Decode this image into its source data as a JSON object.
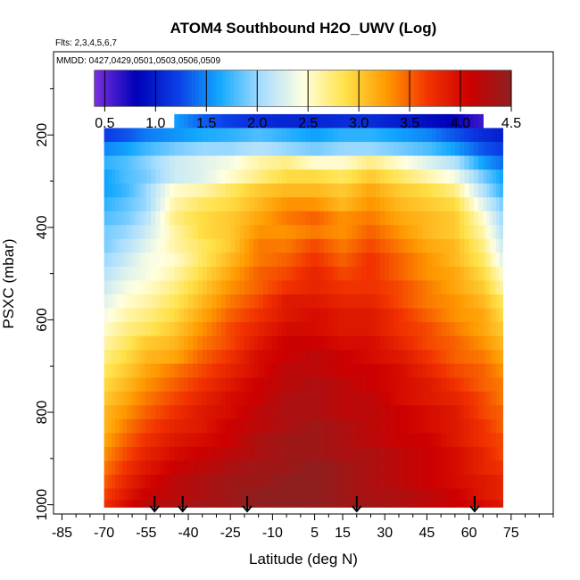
{
  "chart_data": {
    "type": "heatmap",
    "title": "ATOM4 Southbound H2O_UWV (Log)",
    "subtitle_flights": "Flts: 2,3,4,5,6,7",
    "subtitle_dates": "MMDD: 0427,0429,0501,0503,0506,0509",
    "xlabel": "Latitude (deg N)",
    "ylabel": "PSXC (mbar)",
    "xlim": [
      -88,
      90
    ],
    "ylim": [
      1020,
      20
    ],
    "x_ticks": [
      -85,
      -70,
      -55,
      -40,
      -25,
      -10,
      5,
      15,
      30,
      45,
      60,
      75
    ],
    "y_ticks": [
      200,
      400,
      600,
      800,
      1000
    ],
    "colorbar": {
      "min": 0.4,
      "max": 4.5,
      "ticks": [
        0.5,
        1.0,
        1.5,
        2.0,
        2.5,
        3.0,
        3.5,
        4.0,
        4.5
      ],
      "tick_labels": [
        "0.5",
        "1.0",
        "1.5",
        "2.0",
        "2.5",
        "3.0",
        "3.5",
        "4.0",
        "4.5"
      ],
      "colors": [
        "#7b2fe0",
        "#0000b8",
        "#0b3fe6",
        "#12a8ff",
        "#a8ddff",
        "#ffffe0",
        "#ffe24a",
        "#ff9a00",
        "#f23300",
        "#cc0000",
        "#8f1f1f"
      ]
    },
    "pressure_levels": [
      170,
      200,
      230,
      260,
      290,
      320,
      350,
      380,
      410,
      440,
      470,
      500,
      530,
      560,
      590,
      620,
      650,
      680,
      710,
      740,
      770,
      800,
      830,
      860,
      890,
      920,
      950,
      980,
      1000
    ],
    "lat_nodes": [
      -85,
      -70,
      -62,
      -55,
      -45,
      -35,
      -25,
      -15,
      -5,
      5,
      15,
      25,
      35,
      45,
      55,
      65,
      72
    ],
    "values_by_pressure": [
      [
        null,
        null,
        null,
        null,
        1.6,
        1.35,
        1.2,
        1.1,
        1.05,
        1.05,
        1.1,
        1.1,
        1.0,
        0.9,
        0.8,
        0.6,
        null
      ],
      [
        null,
        1.2,
        1.3,
        1.45,
        1.55,
        1.65,
        1.7,
        1.8,
        1.7,
        1.6,
        1.7,
        1.7,
        1.6,
        1.5,
        1.3,
        1.1,
        1.0
      ],
      [
        null,
        1.5,
        1.6,
        1.75,
        1.9,
        2.0,
        2.0,
        2.1,
        2.0,
        1.9,
        2.0,
        2.0,
        1.9,
        1.8,
        1.6,
        1.3,
        1.2
      ],
      [
        null,
        1.7,
        1.8,
        1.95,
        2.2,
        2.3,
        2.4,
        2.6,
        2.7,
        2.5,
        2.5,
        2.7,
        2.5,
        2.3,
        2.1,
        1.6,
        1.4
      ],
      [
        null,
        1.6,
        1.8,
        1.9,
        2.2,
        2.3,
        2.5,
        2.7,
        2.9,
        2.9,
        2.8,
        3.0,
        2.8,
        2.6,
        2.4,
        1.9,
        1.6
      ],
      [
        null,
        1.6,
        1.75,
        2.0,
        2.5,
        2.6,
        2.8,
        3.0,
        3.1,
        3.1,
        3.0,
        3.2,
        3.0,
        2.9,
        2.7,
        2.1,
        1.7
      ],
      [
        null,
        1.7,
        1.85,
        2.0,
        2.6,
        2.8,
        2.9,
        3.1,
        3.3,
        3.3,
        3.1,
        3.3,
        3.1,
        3.0,
        2.9,
        2.3,
        1.9
      ],
      [
        null,
        1.8,
        1.9,
        2.1,
        2.7,
        2.9,
        3.0,
        3.2,
        3.4,
        3.5,
        3.3,
        3.4,
        3.2,
        3.1,
        3.0,
        2.5,
        2.0
      ],
      [
        null,
        1.9,
        2.0,
        2.2,
        2.6,
        2.9,
        3.0,
        3.3,
        3.3,
        3.4,
        3.3,
        3.5,
        3.3,
        3.1,
        3.0,
        2.6,
        2.1
      ],
      [
        null,
        1.9,
        2.1,
        2.3,
        2.6,
        2.8,
        3.0,
        3.4,
        3.4,
        3.6,
        3.4,
        3.6,
        3.4,
        3.2,
        3.1,
        2.7,
        2.2
      ],
      [
        null,
        2.0,
        2.2,
        2.4,
        2.5,
        2.8,
        3.1,
        3.4,
        3.5,
        3.7,
        3.5,
        3.7,
        3.5,
        3.3,
        3.1,
        2.8,
        2.3
      ],
      [
        null,
        2.1,
        2.3,
        2.4,
        2.6,
        2.9,
        3.2,
        3.5,
        3.6,
        3.8,
        3.6,
        3.7,
        3.5,
        3.3,
        3.2,
        2.9,
        2.5
      ],
      [
        null,
        2.2,
        2.4,
        2.5,
        2.7,
        3.0,
        3.3,
        3.5,
        3.7,
        3.8,
        3.7,
        3.7,
        3.6,
        3.4,
        3.2,
        3.0,
        2.6
      ],
      [
        null,
        2.3,
        2.5,
        2.6,
        2.8,
        3.1,
        3.4,
        3.6,
        3.9,
        3.9,
        3.8,
        3.8,
        3.6,
        3.4,
        3.3,
        3.1,
        2.8
      ],
      [
        null,
        2.4,
        2.6,
        2.7,
        2.9,
        3.2,
        3.5,
        3.7,
        3.9,
        4.0,
        3.9,
        3.9,
        3.7,
        3.5,
        3.3,
        3.2,
        2.9
      ],
      [
        null,
        2.5,
        2.7,
        2.8,
        3.0,
        3.3,
        3.6,
        3.8,
        4.0,
        4.0,
        3.9,
        3.9,
        3.7,
        3.6,
        3.4,
        3.2,
        3.0
      ],
      [
        null,
        2.6,
        2.8,
        3.0,
        3.1,
        3.4,
        3.6,
        3.9,
        4.1,
        4.1,
        4.0,
        4.0,
        3.8,
        3.6,
        3.5,
        3.3,
        3.1
      ],
      [
        null,
        2.7,
        2.9,
        3.1,
        3.2,
        3.5,
        3.7,
        4.0,
        4.1,
        4.2,
        4.1,
        4.0,
        3.9,
        3.7,
        3.5,
        3.4,
        3.2
      ],
      [
        null,
        2.8,
        3.0,
        3.2,
        3.4,
        3.6,
        3.8,
        4.0,
        4.2,
        4.2,
        4.1,
        4.1,
        4.0,
        3.8,
        3.6,
        3.5,
        3.3
      ],
      [
        null,
        2.9,
        3.1,
        3.3,
        3.5,
        3.7,
        3.9,
        4.1,
        4.2,
        4.3,
        4.2,
        4.1,
        4.0,
        3.9,
        3.7,
        3.5,
        3.4
      ],
      [
        null,
        3.0,
        3.2,
        3.4,
        3.6,
        3.8,
        4.0,
        4.1,
        4.3,
        4.3,
        4.2,
        4.2,
        4.0,
        3.9,
        3.8,
        3.6,
        3.4
      ],
      [
        null,
        3.1,
        3.3,
        3.5,
        3.7,
        3.9,
        4.0,
        4.2,
        4.3,
        4.3,
        4.2,
        4.2,
        4.1,
        4.0,
        3.9,
        3.6,
        3.5
      ],
      [
        null,
        3.1,
        3.4,
        3.6,
        3.8,
        3.9,
        4.1,
        4.2,
        4.3,
        4.4,
        4.3,
        4.2,
        4.1,
        4.0,
        3.9,
        3.7,
        3.5
      ],
      [
        null,
        3.2,
        3.5,
        3.7,
        3.9,
        4.0,
        4.1,
        4.3,
        4.4,
        4.4,
        4.3,
        4.2,
        4.1,
        4.1,
        3.9,
        3.7,
        3.6
      ],
      [
        null,
        3.3,
        3.6,
        3.8,
        4.0,
        4.1,
        4.2,
        4.3,
        4.4,
        4.4,
        4.3,
        4.3,
        4.2,
        4.1,
        4.0,
        3.8,
        3.6
      ],
      [
        null,
        3.4,
        3.7,
        3.9,
        4.1,
        4.2,
        4.3,
        4.4,
        4.4,
        4.5,
        4.4,
        4.3,
        4.2,
        4.1,
        4.0,
        3.8,
        3.7
      ],
      [
        null,
        3.5,
        3.8,
        4.0,
        4.2,
        4.3,
        4.4,
        4.4,
        4.5,
        4.5,
        4.4,
        4.3,
        4.2,
        4.1,
        4.0,
        3.9,
        3.8
      ],
      [
        null,
        3.6,
        3.9,
        4.1,
        4.2,
        4.3,
        4.4,
        4.5,
        4.5,
        4.5,
        4.4,
        4.3,
        4.3,
        4.2,
        4.1,
        3.9,
        3.8
      ],
      [
        null,
        3.7,
        4.0,
        4.2,
        4.3,
        4.4,
        4.4,
        4.5,
        4.5,
        4.5,
        4.4,
        4.4,
        4.3,
        4.2,
        4.1,
        4.0,
        3.9
      ]
    ],
    "arrows_lat": [
      -52,
      -42,
      -19,
      20,
      62
    ]
  }
}
